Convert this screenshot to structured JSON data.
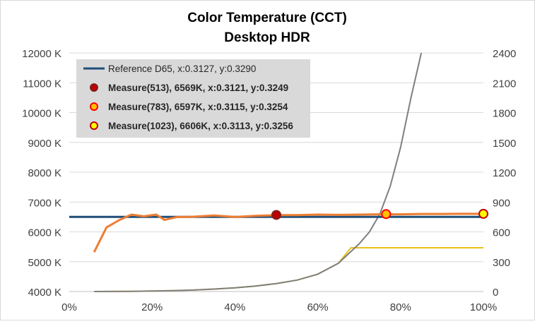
{
  "chart_data": {
    "type": "line",
    "title": "Color Temperature (CCT)",
    "subtitle": "Desktop HDR",
    "xlabel": "",
    "ylabel": "",
    "y2label": "",
    "xlim": [
      0,
      100
    ],
    "ylim": [
      4000,
      12000
    ],
    "y2lim": [
      0,
      2400
    ],
    "x_ticks": [
      "0%",
      "20%",
      "40%",
      "60%",
      "80%",
      "100%"
    ],
    "y_ticks": [
      "4000 K",
      "5000 K",
      "6000 K",
      "7000 K",
      "8000 K",
      "9000 K",
      "10000 K",
      "11000 K",
      "12000 K"
    ],
    "y2_ticks": [
      "0",
      "300",
      "600",
      "900",
      "1200",
      "1500",
      "1800",
      "2100",
      "2400"
    ],
    "grid": true,
    "legend_position": "top-left",
    "colors": {
      "reference": "#1f4e79",
      "cct": "#ed7d31",
      "gray_curve": "#7f7f7f",
      "yellow_curve": "#e6c21a",
      "marker_513_fill": "#c00000",
      "marker_513_edge": "#7f1f1f",
      "marker_783_fill": "#ffc000",
      "marker_783_edge": "#ff0000",
      "marker_1023_fill": "#ffff00",
      "marker_1023_edge": "#c00000"
    },
    "series": [
      {
        "name": "Reference D65, x:0.3127, y:0.3290",
        "axis": "left",
        "x": [
          0,
          100
        ],
        "y": [
          6504,
          6504
        ]
      },
      {
        "name": "",
        "axis": "left",
        "x": [
          6,
          9,
          12,
          15,
          18,
          21,
          23,
          26,
          30,
          35,
          40,
          45,
          50,
          55,
          60,
          65,
          70,
          75,
          80,
          85,
          90,
          95,
          100
        ],
        "y": [
          5320,
          6150,
          6390,
          6580,
          6520,
          6580,
          6400,
          6500,
          6510,
          6550,
          6500,
          6540,
          6560,
          6560,
          6580,
          6570,
          6580,
          6590,
          6590,
          6600,
          6600,
          6605,
          6606
        ]
      },
      {
        "name": "",
        "axis": "right",
        "x": [
          6,
          10,
          15,
          20,
          25,
          30,
          35,
          40,
          45,
          50,
          55,
          60,
          65,
          70,
          72.5,
          75,
          77.5,
          80,
          82.5,
          85
        ],
        "y": [
          0,
          1,
          2,
          5,
          9,
          15,
          25,
          37,
          55,
          80,
          115,
          175,
          285,
          480,
          600,
          780,
          1060,
          1450,
          1950,
          2400
        ]
      },
      {
        "name": "",
        "axis": "right",
        "x": [
          6,
          10,
          15,
          20,
          25,
          30,
          35,
          40,
          45,
          50,
          55,
          60,
          65,
          68,
          75,
          85,
          100
        ],
        "y": [
          0,
          1,
          2,
          5,
          9,
          15,
          25,
          37,
          55,
          80,
          115,
          175,
          285,
          440,
          440,
          440,
          440
        ]
      }
    ],
    "markers": [
      {
        "name": "Measure(513), 6569K, x:0.3121, y:0.3249",
        "x": 50,
        "y": 6569,
        "style": "513"
      },
      {
        "name": "Measure(783), 6597K, x:0.3115, y:0.3254",
        "x": 76.5,
        "y": 6597,
        "style": "783"
      },
      {
        "name": "Measure(1023), 6606K, x:0.3113, y:0.3256",
        "x": 100,
        "y": 6606,
        "style": "1023"
      }
    ]
  }
}
